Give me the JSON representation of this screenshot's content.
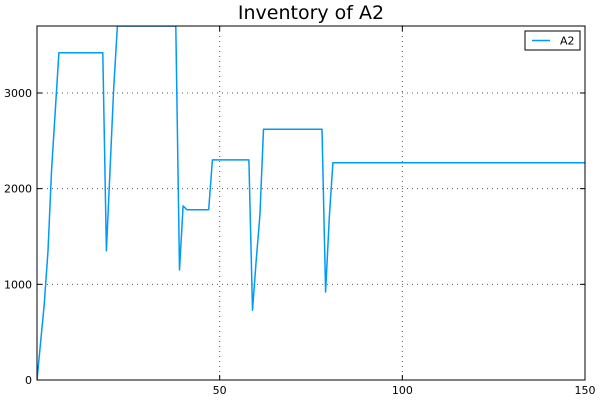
{
  "chart_data": {
    "type": "line",
    "title": "Inventory of A2",
    "xlabel": "",
    "ylabel": "",
    "xlim": [
      0,
      150
    ],
    "ylim": [
      0,
      3700
    ],
    "xticks": [
      50,
      100,
      150
    ],
    "yticks": [
      0,
      1000,
      2000,
      3000
    ],
    "grid": true,
    "legend_position": "top-right",
    "series": [
      {
        "name": "A2",
        "color": "#009af9",
        "x": [
          0,
          2,
          3,
          4,
          6,
          18,
          19,
          21,
          22,
          38,
          39,
          40,
          41,
          47,
          48,
          58,
          59,
          60,
          61,
          62,
          78,
          79,
          80,
          81,
          150
        ],
        "y": [
          0,
          800,
          1350,
          2200,
          3420,
          3420,
          1350,
          3050,
          3700,
          3700,
          1150,
          1820,
          1780,
          1780,
          2300,
          2300,
          730,
          1250,
          1720,
          2620,
          2620,
          920,
          1700,
          2270,
          2270
        ]
      }
    ]
  }
}
